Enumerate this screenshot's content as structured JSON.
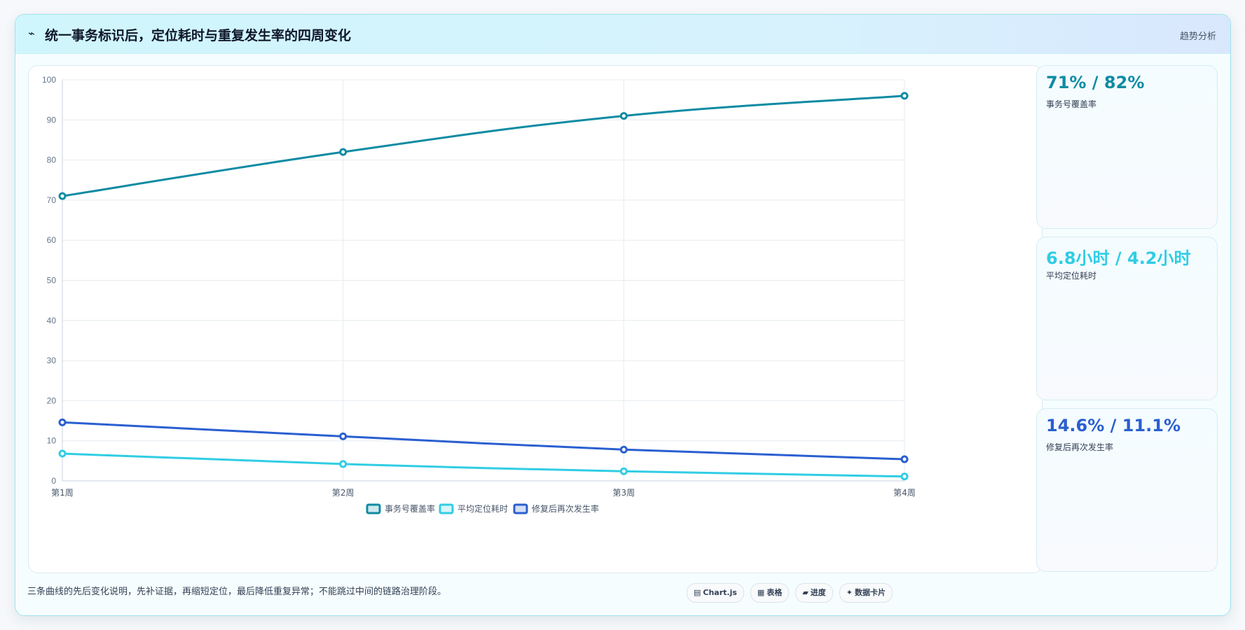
{
  "header": {
    "icon": "trend-line-icon",
    "title": "统一事务标识后，定位耗时与重复发生率的四周变化",
    "tag": "趋势分析"
  },
  "chart_data": {
    "type": "line",
    "categories": [
      "第1周",
      "第2周",
      "第3周",
      "第4周"
    ],
    "ylim": [
      0,
      100
    ],
    "yticks": [
      0,
      10,
      20,
      30,
      40,
      50,
      60,
      70,
      80,
      90,
      100
    ],
    "grid": true,
    "legend_position": "bottom",
    "series": [
      {
        "name": "事务号覆盖率",
        "color": "#0e8ba3",
        "values": [
          71,
          82,
          91,
          96
        ]
      },
      {
        "name": "平均定位耗时",
        "color": "#30cde4",
        "values": [
          6.8,
          4.2,
          2.4,
          1.1
        ]
      },
      {
        "name": "修复后再次发生率",
        "color": "#2a5fd0",
        "values": [
          14.6,
          11.1,
          7.8,
          5.4
        ]
      }
    ]
  },
  "kpis": [
    {
      "value": "71% / 82%",
      "label": "事务号覆盖率",
      "color": "#0e8ba3"
    },
    {
      "value": "6.8小时 / 4.2小时",
      "label": "平均定位耗时",
      "color": "#30cde4"
    },
    {
      "value": "14.6% / 11.1%",
      "label": "修复后再次发生率",
      "color": "#2a5fd0"
    }
  ],
  "footer": {
    "note": "三条曲线的先后变化说明，先补证据，再缩短定位，最后降低重复异常；不能跳过中间的链路治理阶段。"
  },
  "chips": [
    {
      "icon": "▤",
      "label": "Chart.js"
    },
    {
      "icon": "▦",
      "label": "表格"
    },
    {
      "icon": "▰",
      "label": "进度"
    },
    {
      "icon": "✦",
      "label": "数据卡片"
    }
  ]
}
